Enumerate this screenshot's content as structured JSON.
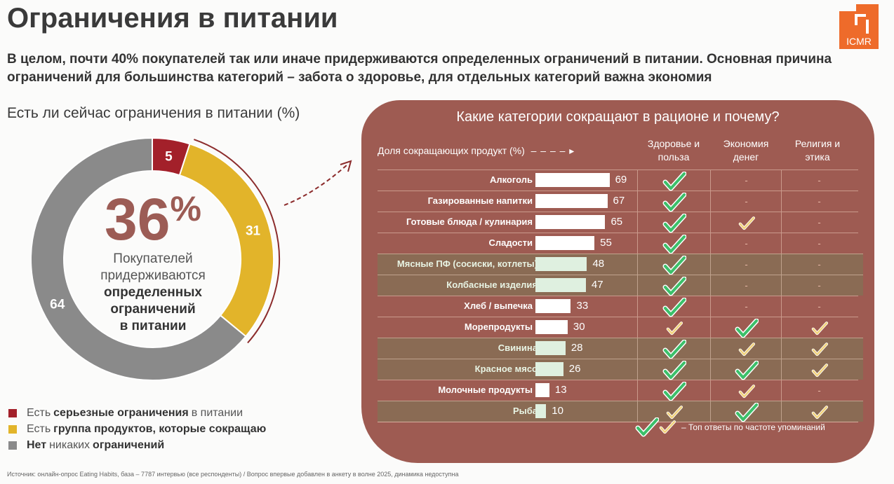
{
  "title": "Ограничения в питании",
  "subtitle": "В целом, почти 40% покупателей так или иначе придерживаются определенных ограничений в питании. Основная причина ограничений для большинства категорий – забота о здоровье, для отдельных категорий важна экономия",
  "logo": "ICMR",
  "colors": {
    "red": "#a3202a",
    "yellow": "#e2b42a",
    "gray": "#8a8a8a",
    "panel": "#9e5b52",
    "green": "#3cc06a",
    "check_yellow": "#f2d27a"
  },
  "chart_data": [
    {
      "type": "pie",
      "title": "Есть ли сейчас ограничения в питании (%)",
      "center_value": "36",
      "center_unit": "%",
      "center_caption": [
        "Покупателей",
        "придерживаются",
        "определенных",
        "ограничений",
        "в питании"
      ],
      "slices": [
        {
          "label": "Есть серьезные ограничения в питании",
          "value": 5,
          "color": "#a3202a"
        },
        {
          "label": "Есть группа продуктов, которые сокращаю",
          "value": 31,
          "color": "#e2b42a"
        },
        {
          "label": "Нет никаких ограничений",
          "value": 64,
          "color": "#8a8a8a"
        }
      ],
      "legend": [
        {
          "parts": [
            "Есть",
            "серьезные ограничения",
            "в питании"
          ]
        },
        {
          "parts": [
            "Есть",
            "группа продуктов, которые сокращаю",
            ""
          ]
        },
        {
          "parts": [
            "Нет",
            "никаких",
            "ограничений"
          ]
        }
      ]
    },
    {
      "type": "table",
      "title": "Какие категории сокращают в рационе и почему?",
      "bar_header": "Доля сокращающих продукт (%)",
      "columns": [
        "Здоровье и польза",
        "Экономия денег",
        "Религия и этика"
      ],
      "rows": [
        {
          "label": "Алкоголь",
          "value": 69,
          "hl": false,
          "reasons": [
            "g",
            "-",
            "-"
          ]
        },
        {
          "label": "Газированные напитки",
          "value": 67,
          "hl": false,
          "reasons": [
            "g",
            "-",
            "-"
          ]
        },
        {
          "label": "Готовые блюда / кулинария",
          "value": 65,
          "hl": false,
          "reasons": [
            "g",
            "y",
            "-"
          ]
        },
        {
          "label": "Сладости",
          "value": 55,
          "hl": false,
          "reasons": [
            "g",
            "-",
            "-"
          ]
        },
        {
          "label": "Мясные ПФ (сосиски, котлеты)",
          "value": 48,
          "hl": true,
          "reasons": [
            "g",
            "-",
            "-"
          ]
        },
        {
          "label": "Колбасные изделия",
          "value": 47,
          "hl": true,
          "reasons": [
            "g",
            "-",
            "-"
          ]
        },
        {
          "label": "Хлеб / выпечка",
          "value": 33,
          "hl": false,
          "reasons": [
            "g",
            "-",
            "-"
          ]
        },
        {
          "label": "Морепродукты",
          "value": 30,
          "hl": false,
          "reasons": [
            "y",
            "g",
            "y"
          ]
        },
        {
          "label": "Свинина",
          "value": 28,
          "hl": true,
          "reasons": [
            "g",
            "y",
            "y"
          ]
        },
        {
          "label": "Красное мясо",
          "value": 26,
          "hl": true,
          "reasons": [
            "g",
            "g",
            "y"
          ]
        },
        {
          "label": "Молочные продукты",
          "value": 13,
          "hl": false,
          "reasons": [
            "g",
            "y",
            "-"
          ]
        },
        {
          "label": "Рыба",
          "value": 10,
          "hl": true,
          "reasons": [
            "y",
            "g",
            "y"
          ]
        }
      ],
      "legend": "– Топ ответы по частоте упоминаний"
    }
  ],
  "footer": "Источник: онлайн-опрос Eating Habits, база – 7787 интервью (все респонденты) / Вопрос впервые добавлен в анкету в волне 2025, динамика недоступна"
}
